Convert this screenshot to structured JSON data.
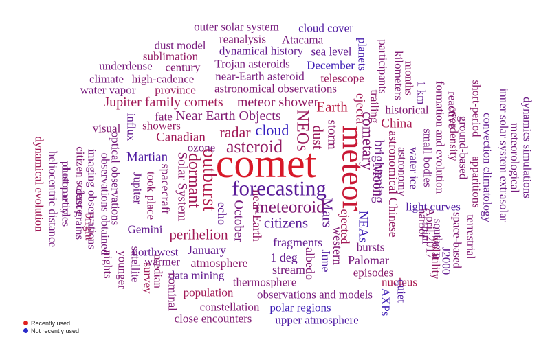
{
  "legend": {
    "recent_label": "Recently used",
    "recent_color": "#e02020",
    "not_recent_label": "Not recently used",
    "not_recent_color": "#2a2ac8"
  },
  "words": [
    {
      "text": "comet",
      "weight": 1.0,
      "shade": 0.0,
      "vertical": false
    },
    {
      "text": "meteor",
      "weight": 0.7,
      "shade": 0.1,
      "vertical": true
    },
    {
      "text": "forecasting",
      "weight": 0.42,
      "shade": 0.75,
      "vertical": false
    },
    {
      "text": "asteroid",
      "weight": 0.32,
      "shade": 0.45,
      "vertical": false
    },
    {
      "text": "outburst",
      "weight": 0.36,
      "shade": 0.25,
      "vertical": true
    },
    {
      "text": "meteoroid",
      "weight": 0.3,
      "shade": 0.55,
      "vertical": false
    },
    {
      "text": "NEOs",
      "weight": 0.3,
      "shade": 0.4,
      "vertical": true
    },
    {
      "text": "cometary",
      "weight": 0.26,
      "shade": 0.55,
      "vertical": true
    },
    {
      "text": "dormant",
      "weight": 0.27,
      "shade": 0.35,
      "vertical": true
    },
    {
      "text": "radar",
      "weight": 0.24,
      "shade": 0.35,
      "vertical": false
    },
    {
      "text": "cloud",
      "weight": 0.24,
      "shade": 0.95,
      "vertical": false
    },
    {
      "text": "Earth",
      "weight": 0.22,
      "shade": 0.2,
      "vertical": false
    },
    {
      "text": "Mars",
      "weight": 0.22,
      "shade": 0.7,
      "vertical": true
    },
    {
      "text": "dust",
      "weight": 0.22,
      "shade": 0.4,
      "vertical": true
    },
    {
      "text": "citizens",
      "weight": 0.22,
      "shade": 0.75,
      "vertical": false
    },
    {
      "text": "perihelion",
      "weight": 0.21,
      "shade": 0.35,
      "vertical": false
    },
    {
      "text": "Near Earth Objects",
      "weight": 0.19,
      "shade": 0.55,
      "vertical": false
    },
    {
      "text": "meteor shower",
      "weight": 0.19,
      "shade": 0.45,
      "vertical": false
    },
    {
      "text": "Jupiter family comets",
      "weight": 0.19,
      "shade": 0.35,
      "vertical": false
    },
    {
      "text": "brightening",
      "weight": 0.19,
      "shade": 0.65,
      "vertical": true
    },
    {
      "text": "Moon",
      "weight": 0.19,
      "shade": 0.6,
      "vertical": true
    },
    {
      "text": "ejecta",
      "weight": 0.17,
      "shade": 0.35,
      "vertical": true
    },
    {
      "text": "storm",
      "weight": 0.17,
      "shade": 0.5,
      "vertical": true
    },
    {
      "text": "China",
      "weight": 0.18,
      "shade": 0.3,
      "vertical": false
    },
    {
      "text": "October",
      "weight": 0.18,
      "shade": 0.6,
      "vertical": true
    },
    {
      "text": "Solar System",
      "weight": 0.18,
      "shade": 0.5,
      "vertical": true
    },
    {
      "text": "Martian",
      "weight": 0.17,
      "shade": 0.8,
      "vertical": false
    },
    {
      "text": "Canadian",
      "weight": 0.17,
      "shade": 0.35,
      "vertical": false
    },
    {
      "text": "astronomical Chinese",
      "weight": 0.16,
      "shade": 0.45,
      "vertical": true
    },
    {
      "text": "NEAs",
      "weight": 0.17,
      "shade": 0.9,
      "vertical": true
    },
    {
      "text": "ejected",
      "weight": 0.16,
      "shade": 0.35,
      "vertical": true
    },
    {
      "text": "fragments",
      "weight": 0.16,
      "shade": 0.7,
      "vertical": false
    },
    {
      "text": "spacecraft",
      "weight": 0.16,
      "shade": 0.55,
      "vertical": true
    },
    {
      "text": "near-Earth",
      "weight": 0.15,
      "shade": 0.45,
      "vertical": true
    },
    {
      "text": "echo",
      "weight": 0.15,
      "shade": 0.7,
      "vertical": true
    },
    {
      "text": "atmosphere",
      "weight": 0.15,
      "shade": 0.5,
      "vertical": false
    },
    {
      "text": "January",
      "weight": 0.15,
      "shade": 0.7,
      "vertical": false
    },
    {
      "text": "Palomar",
      "weight": 0.15,
      "shade": 0.6,
      "vertical": false
    },
    {
      "text": "albedo",
      "weight": 0.15,
      "shade": 0.55,
      "vertical": true
    },
    {
      "text": "June",
      "weight": 0.15,
      "shade": 0.8,
      "vertical": true
    },
    {
      "text": "western",
      "weight": 0.15,
      "shade": 0.55,
      "vertical": true
    },
    {
      "text": "1 deg",
      "weight": 0.15,
      "shade": 0.7,
      "vertical": false
    },
    {
      "text": "stream",
      "weight": 0.15,
      "shade": 0.6,
      "vertical": false
    },
    {
      "text": "bursts",
      "weight": 0.14,
      "shade": 0.6,
      "vertical": false
    },
    {
      "text": "episodes",
      "weight": 0.14,
      "shade": 0.5,
      "vertical": false
    },
    {
      "text": "nucleus",
      "weight": 0.14,
      "shade": 0.3,
      "vertical": false
    },
    {
      "text": "AXPs",
      "weight": 0.14,
      "shade": 0.9,
      "vertical": true
    },
    {
      "text": "quiet",
      "weight": 0.14,
      "shade": 0.8,
      "vertical": true
    },
    {
      "text": "population",
      "weight": 0.14,
      "shade": 0.35,
      "vertical": false
    },
    {
      "text": "thermosphere",
      "weight": 0.14,
      "shade": 0.55,
      "vertical": false
    },
    {
      "text": "observations and models",
      "weight": 0.14,
      "shade": 0.6,
      "vertical": false
    },
    {
      "text": "constellation",
      "weight": 0.14,
      "shade": 0.55,
      "vertical": false
    },
    {
      "text": "polar regions",
      "weight": 0.14,
      "shade": 0.9,
      "vertical": false
    },
    {
      "text": "close encounters",
      "weight": 0.14,
      "shade": 0.55,
      "vertical": false
    },
    {
      "text": "upper atmosphere",
      "weight": 0.14,
      "shade": 0.8,
      "vertical": false
    },
    {
      "text": "data mining",
      "weight": 0.13,
      "shade": 0.7,
      "vertical": false
    },
    {
      "text": "warmer",
      "weight": 0.13,
      "shade": 0.6,
      "vertical": false
    },
    {
      "text": "northwest",
      "weight": 0.13,
      "shade": 0.7,
      "vertical": false
    },
    {
      "text": "Gemini",
      "weight": 0.14,
      "shade": 0.7,
      "vertical": false
    },
    {
      "text": "Jupiter",
      "weight": 0.13,
      "shade": 0.65,
      "vertical": true
    },
    {
      "text": "took place",
      "weight": 0.13,
      "shade": 0.5,
      "vertical": true
    },
    {
      "text": "ozone",
      "weight": 0.14,
      "shade": 0.6,
      "vertical": false
    },
    {
      "text": "showers",
      "weight": 0.13,
      "shade": 0.45,
      "vertical": false
    },
    {
      "text": "fate",
      "weight": 0.13,
      "shade": 0.55,
      "vertical": false
    },
    {
      "text": "influx",
      "weight": 0.13,
      "shade": 0.7,
      "vertical": true
    },
    {
      "text": "visual",
      "weight": 0.13,
      "shade": 0.55,
      "vertical": false
    },
    {
      "text": "astronomical observations",
      "weight": 0.14,
      "shade": 0.55,
      "vertical": false
    },
    {
      "text": "near-Earth asteroid",
      "weight": 0.14,
      "shade": 0.6,
      "vertical": false
    },
    {
      "text": "Trojan asteroids",
      "weight": 0.13,
      "shade": 0.6,
      "vertical": false
    },
    {
      "text": "dynamical history",
      "weight": 0.13,
      "shade": 0.7,
      "vertical": false
    },
    {
      "text": "reanalysis",
      "weight": 0.13,
      "shade": 0.55,
      "vertical": false
    },
    {
      "text": "outer solar system",
      "weight": 0.13,
      "shade": 0.6,
      "vertical": false
    },
    {
      "text": "cloud cover",
      "weight": 0.13,
      "shade": 0.8,
      "vertical": false
    },
    {
      "text": "Atacama",
      "weight": 0.13,
      "shade": 0.6,
      "vertical": false
    },
    {
      "text": "sea level",
      "weight": 0.13,
      "shade": 0.7,
      "vertical": false
    },
    {
      "text": "December",
      "weight": 0.13,
      "shade": 0.9,
      "vertical": false
    },
    {
      "text": "telescope",
      "weight": 0.13,
      "shade": 0.4,
      "vertical": false
    },
    {
      "text": "trailing",
      "weight": 0.13,
      "shade": 0.5,
      "vertical": true
    },
    {
      "text": "planets",
      "weight": 0.13,
      "shade": 0.85,
      "vertical": true
    },
    {
      "text": "participants",
      "weight": 0.13,
      "shade": 0.55,
      "vertical": true
    },
    {
      "text": "kilometers",
      "weight": 0.13,
      "shade": 0.55,
      "vertical": true
    },
    {
      "text": "historical",
      "weight": 0.13,
      "shade": 0.55,
      "vertical": false
    },
    {
      "text": "months",
      "weight": 0.13,
      "shade": 0.5,
      "vertical": true
    },
    {
      "text": "1 km",
      "weight": 0.13,
      "shade": 0.7,
      "vertical": true
    },
    {
      "text": "astronomy",
      "weight": 0.13,
      "shade": 0.55,
      "vertical": true
    },
    {
      "text": "water ice",
      "weight": 0.13,
      "shade": 0.7,
      "vertical": true
    },
    {
      "text": "small bodies",
      "weight": 0.13,
      "shade": 0.6,
      "vertical": true
    },
    {
      "text": "formation and evolution",
      "weight": 0.13,
      "shade": 0.55,
      "vertical": true
    },
    {
      "text": "reactive",
      "weight": 0.13,
      "shade": 0.55,
      "vertical": true
    },
    {
      "text": "overdensity",
      "weight": 0.13,
      "shade": 0.5,
      "vertical": true
    },
    {
      "text": "ground-based",
      "weight": 0.13,
      "shade": 0.55,
      "vertical": true
    },
    {
      "text": "short-period",
      "weight": 0.13,
      "shade": 0.5,
      "vertical": true
    },
    {
      "text": "apparitions",
      "weight": 0.13,
      "shade": 0.5,
      "vertical": true
    },
    {
      "text": "convection climatology",
      "weight": 0.13,
      "shade": 0.7,
      "vertical": true
    },
    {
      "text": "inner solar system extrasolar",
      "weight": 0.13,
      "shade": 0.65,
      "vertical": true
    },
    {
      "text": "meteorological",
      "weight": 0.13,
      "shade": 0.6,
      "vertical": true
    },
    {
      "text": "dynamics simulations",
      "weight": 0.13,
      "shade": 0.65,
      "vertical": true
    },
    {
      "text": "light curves",
      "weight": 0.13,
      "shade": 0.8,
      "vertical": false
    },
    {
      "text": "harbor",
      "weight": 0.13,
      "shade": 0.55,
      "vertical": true
    },
    {
      "text": "mini",
      "weight": 0.13,
      "shade": 0.6,
      "vertical": true
    },
    {
      "text": "April 2017",
      "weight": 0.13,
      "shade": 0.55,
      "vertical": true
    },
    {
      "text": "southern",
      "weight": 0.13,
      "shade": 0.6,
      "vertical": true
    },
    {
      "text": "volatility",
      "weight": 0.13,
      "shade": 0.45,
      "vertical": true
    },
    {
      "text": "J2000",
      "weight": 0.13,
      "shade": 0.7,
      "vertical": true
    },
    {
      "text": "space-based",
      "weight": 0.13,
      "shade": 0.55,
      "vertical": true
    },
    {
      "text": "terrestrial",
      "weight": 0.13,
      "shade": 0.55,
      "vertical": true
    },
    {
      "text": "sublimation",
      "weight": 0.13,
      "shade": 0.45,
      "vertical": false
    },
    {
      "text": "dust model",
      "weight": 0.13,
      "shade": 0.6,
      "vertical": false
    },
    {
      "text": "century",
      "weight": 0.13,
      "shade": 0.55,
      "vertical": false
    },
    {
      "text": "underdense",
      "weight": 0.13,
      "shade": 0.6,
      "vertical": false
    },
    {
      "text": "high-cadence",
      "weight": 0.13,
      "shade": 0.55,
      "vertical": false
    },
    {
      "text": "climate",
      "weight": 0.13,
      "shade": 0.6,
      "vertical": false
    },
    {
      "text": "province",
      "weight": 0.13,
      "shade": 0.4,
      "vertical": false
    },
    {
      "text": "water vapor",
      "weight": 0.13,
      "shade": 0.6,
      "vertical": false
    },
    {
      "text": "optical observations",
      "weight": 0.13,
      "shade": 0.6,
      "vertical": true
    },
    {
      "text": "observations obtained",
      "weight": 0.13,
      "shade": 0.6,
      "vertical": true
    },
    {
      "text": "imaging observations",
      "weight": 0.13,
      "shade": 0.6,
      "vertical": true
    },
    {
      "text": "citizen science",
      "weight": 0.13,
      "shade": 0.55,
      "vertical": true
    },
    {
      "text": "dust grains",
      "weight": 0.13,
      "shade": 0.6,
      "vertical": true
    },
    {
      "text": "bright",
      "weight": 0.13,
      "shade": 0.4,
      "vertical": true
    },
    {
      "text": "nights",
      "weight": 0.13,
      "shade": 0.55,
      "vertical": true
    },
    {
      "text": "dust particles",
      "weight": 0.13,
      "shade": 0.6,
      "vertical": true
    },
    {
      "text": "photometry",
      "weight": 0.13,
      "shade": 0.6,
      "vertical": true
    },
    {
      "text": "heliocentric distance",
      "weight": 0.13,
      "shade": 0.6,
      "vertical": true
    },
    {
      "text": "dynamical evolution",
      "weight": 0.13,
      "shade": 0.35,
      "vertical": true
    },
    {
      "text": "younger",
      "weight": 0.13,
      "shade": 0.55,
      "vertical": true
    },
    {
      "text": "satellite",
      "weight": 0.13,
      "shade": 0.6,
      "vertical": true
    },
    {
      "text": "survey",
      "weight": 0.13,
      "shade": 0.35,
      "vertical": true
    },
    {
      "text": "median",
      "weight": 0.13,
      "shade": 0.5,
      "vertical": true
    },
    {
      "text": "nominal",
      "weight": 0.13,
      "shade": 0.55,
      "vertical": true
    }
  ]
}
